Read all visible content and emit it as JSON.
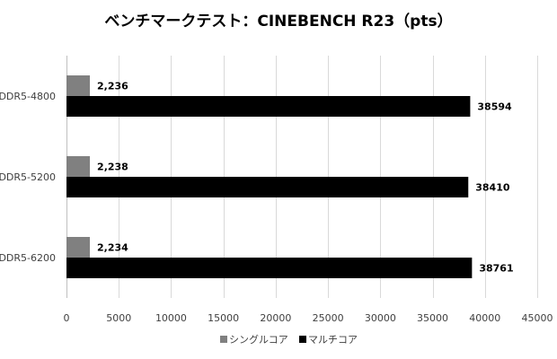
{
  "chart_data": {
    "type": "bar",
    "orientation": "horizontal",
    "title": "ベンチマークテスト：CINEBENCH R23（pts）",
    "categories": [
      "DDR5-4800",
      "DDR5-5200",
      "DDR5-6200"
    ],
    "series": [
      {
        "name": "シングルコア",
        "color": "#808080",
        "values": [
          2236,
          2238,
          2234
        ],
        "labels": [
          "2,236",
          "2,238",
          "2,234"
        ]
      },
      {
        "name": "マルチコア",
        "color": "#000000",
        "values": [
          38594,
          38410,
          38761
        ],
        "labels": [
          "38594",
          "38410",
          "38761"
        ]
      }
    ],
    "xlim": [
      0,
      45000
    ],
    "xticks": [
      0,
      5000,
      10000,
      15000,
      20000,
      25000,
      30000,
      35000,
      40000,
      45000
    ],
    "grid": true,
    "legend_position": "bottom"
  }
}
